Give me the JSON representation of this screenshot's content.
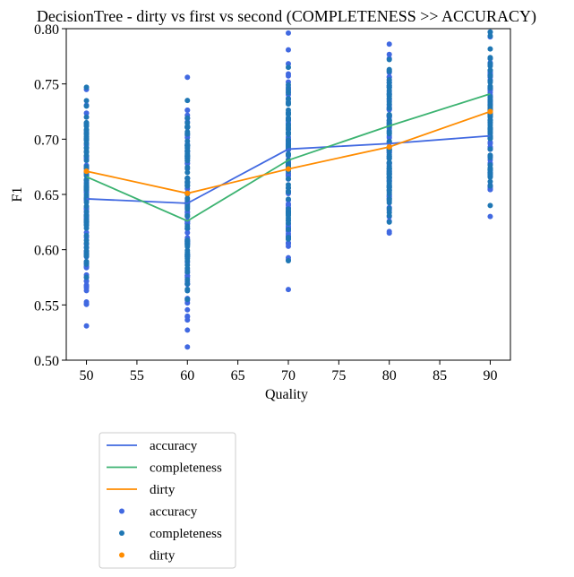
{
  "chart_data": {
    "type": "line",
    "title": "DecisionTree - dirty vs first vs second (COMPLETENESS >> ACCURACY)",
    "xlabel": "Quality",
    "ylabel": "F1",
    "xlim": [
      48,
      92
    ],
    "ylim": [
      0.5,
      0.8
    ],
    "xticks": [
      50,
      55,
      60,
      65,
      70,
      75,
      80,
      85,
      90
    ],
    "yticks": [
      0.5,
      0.55,
      0.6,
      0.65,
      0.7,
      0.75,
      0.8
    ],
    "x": [
      50,
      60,
      70,
      80,
      90
    ],
    "series": [
      {
        "name": "accuracy",
        "kind": "line",
        "color": "#4169e1",
        "values": [
          0.646,
          0.642,
          0.691,
          0.696,
          0.703
        ]
      },
      {
        "name": "completeness",
        "kind": "line",
        "color": "#3cb371",
        "values": [
          0.666,
          0.626,
          0.681,
          0.712,
          0.741
        ]
      },
      {
        "name": "dirty",
        "kind": "line",
        "color": "#ff8c00",
        "values": [
          0.671,
          0.651,
          0.673,
          0.693,
          0.725
        ]
      }
    ],
    "scatter": [
      {
        "name": "accuracy",
        "color": "#4169e1",
        "ranges": [
          {
            "x": 50,
            "min": 0.531,
            "max": 0.745
          },
          {
            "x": 60,
            "min": 0.512,
            "max": 0.756
          },
          {
            "x": 70,
            "min": 0.564,
            "max": 0.796
          },
          {
            "x": 80,
            "min": 0.615,
            "max": 0.786
          },
          {
            "x": 90,
            "min": 0.63,
            "max": 0.797
          }
        ]
      },
      {
        "name": "completeness",
        "color": "#1f77b4",
        "ranges": [
          {
            "x": 50,
            "min": 0.575,
            "max": 0.747
          },
          {
            "x": 60,
            "min": 0.555,
            "max": 0.735
          },
          {
            "x": 70,
            "min": 0.59,
            "max": 0.765
          },
          {
            "x": 80,
            "min": 0.625,
            "max": 0.772
          },
          {
            "x": 90,
            "min": 0.64,
            "max": 0.797
          }
        ]
      },
      {
        "name": "dirty",
        "color": "#ff8c00",
        "points": [
          {
            "x": 50,
            "y": 0.671
          },
          {
            "x": 60,
            "y": 0.651
          },
          {
            "x": 70,
            "y": 0.673
          },
          {
            "x": 80,
            "y": 0.693
          },
          {
            "x": 90,
            "y": 0.725
          }
        ]
      }
    ],
    "legend": {
      "placement": "below",
      "entries": [
        {
          "label": "accuracy",
          "marker": "line",
          "color": "#4169e1"
        },
        {
          "label": "completeness",
          "marker": "line",
          "color": "#3cb371"
        },
        {
          "label": "dirty",
          "marker": "line",
          "color": "#ff8c00"
        },
        {
          "label": "accuracy",
          "marker": "dot",
          "color": "#4169e1"
        },
        {
          "label": "completeness",
          "marker": "dot",
          "color": "#1f77b4"
        },
        {
          "label": "dirty",
          "marker": "dot",
          "color": "#ff8c00"
        }
      ]
    }
  }
}
